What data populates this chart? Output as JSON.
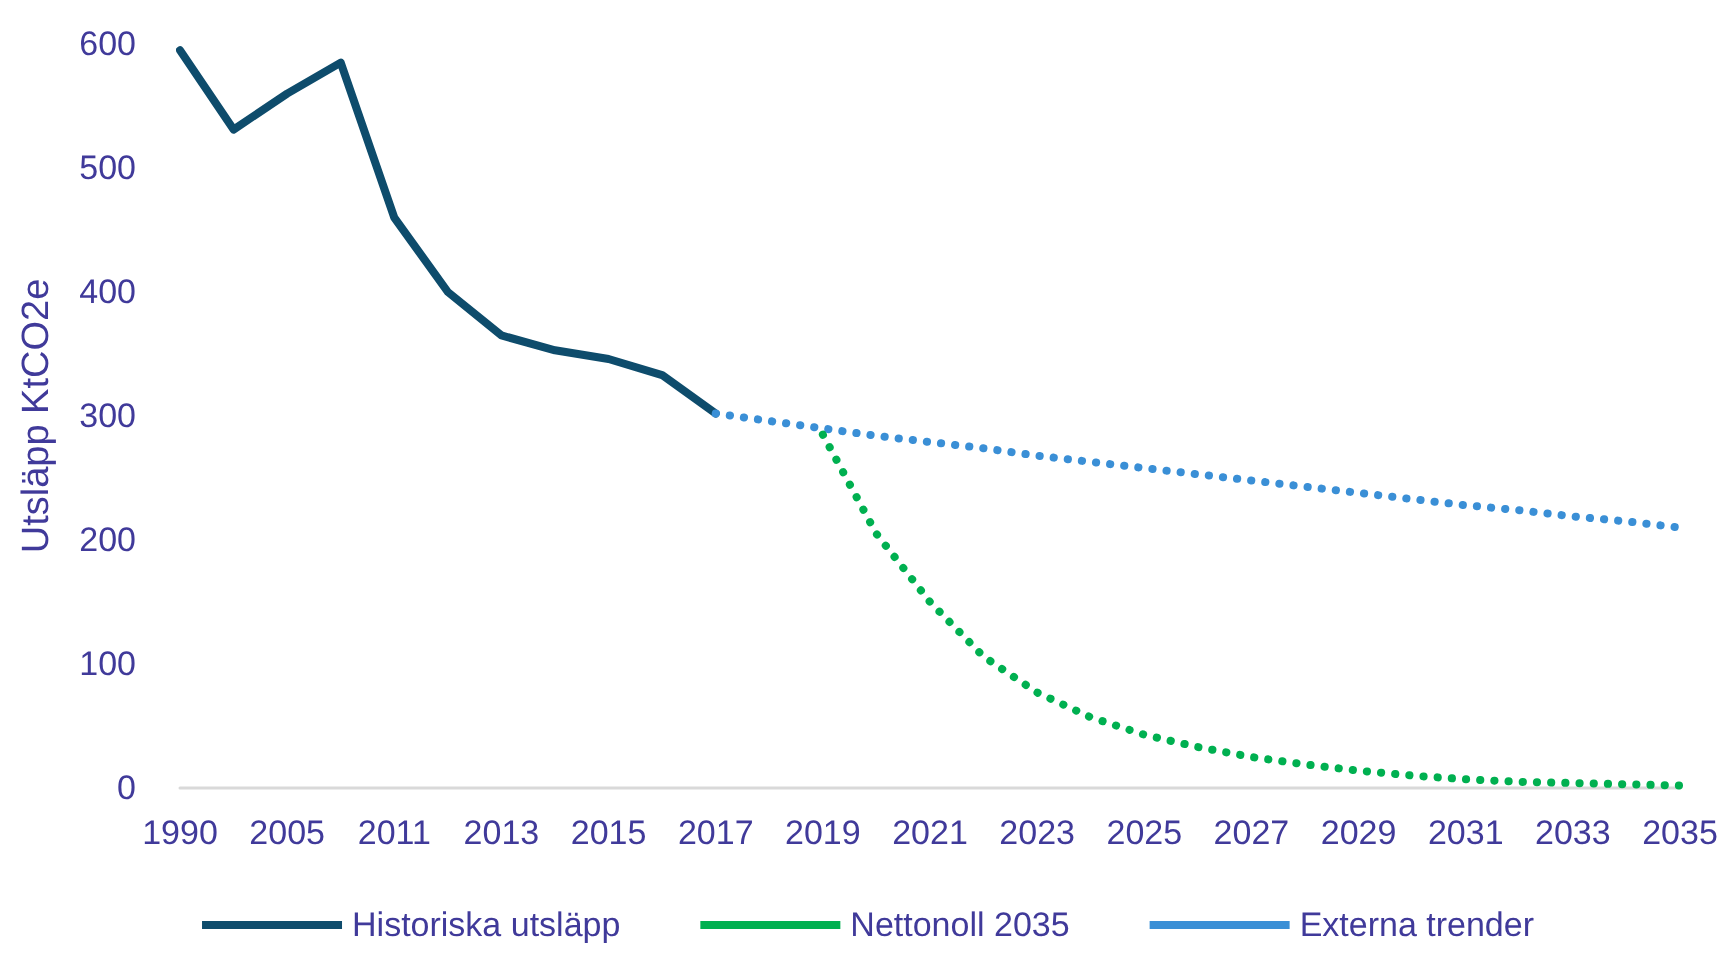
{
  "chart_data": {
    "type": "line",
    "ylabel": "Utsläpp KtCO2e",
    "categories": [
      "1990",
      null,
      "2005",
      null,
      "2011",
      null,
      "2013",
      null,
      "2015",
      null,
      "2017",
      null,
      "2019",
      null,
      "2021",
      null,
      "2023",
      null,
      "2025",
      null,
      "2027",
      null,
      "2029",
      null,
      "2031",
      null,
      "2033",
      null,
      "2035"
    ],
    "series": [
      {
        "name": "Historiska utsläpp",
        "color": "#0e4c6c",
        "line_style": "solid",
        "values": [
          595,
          531,
          560,
          585,
          460,
          400,
          365,
          353,
          346,
          333,
          302,
          null,
          null,
          null,
          null,
          null,
          null,
          null,
          null,
          null,
          null,
          null,
          null,
          null,
          null,
          null,
          null,
          null,
          null
        ]
      },
      {
        "name": "Nettonoll 2035",
        "color": "#00b050",
        "line_style": "dotted",
        "values": [
          null,
          null,
          null,
          null,
          null,
          null,
          null,
          null,
          null,
          null,
          null,
          null,
          285,
          205,
          150,
          106,
          77,
          57,
          43,
          33,
          25,
          19,
          14,
          10,
          7,
          5,
          4,
          3,
          2
        ]
      },
      {
        "name": "Externa trender",
        "color": "#3a8fd6",
        "line_style": "dotted",
        "values": [
          null,
          null,
          null,
          null,
          null,
          null,
          null,
          null,
          null,
          null,
          302,
          296,
          290,
          284,
          279,
          274,
          268,
          263,
          258,
          253,
          248,
          243,
          238,
          233,
          228,
          224,
          219,
          215,
          210
        ]
      }
    ],
    "ylim": [
      0,
      600
    ],
    "yticks": [
      0,
      100,
      200,
      300,
      400,
      500,
      600
    ],
    "grid": false,
    "legend": "bottom",
    "marker": "none"
  }
}
